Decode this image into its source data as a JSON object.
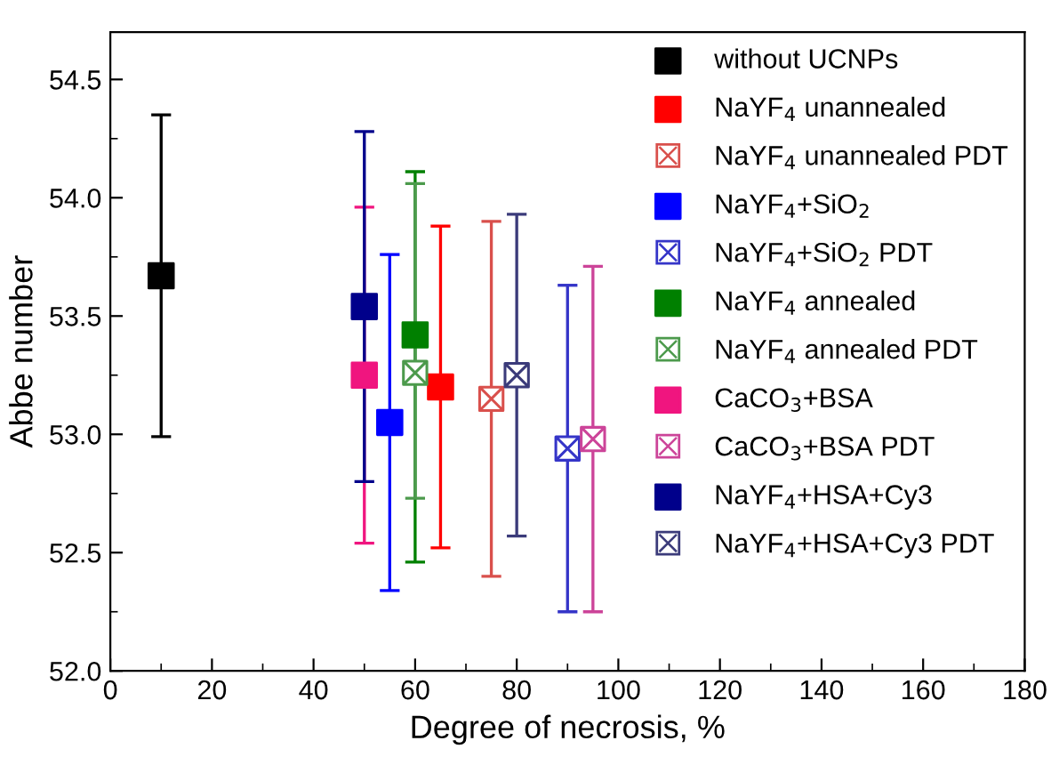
{
  "chart_data": {
    "type": "scatter",
    "xlabel": "Degree of necrosis, %",
    "ylabel": "Abbe number",
    "xlim": [
      0,
      180
    ],
    "xticks": [
      0,
      20,
      40,
      60,
      80,
      100,
      120,
      140,
      160,
      180
    ],
    "ylim": [
      52.0,
      54.7
    ],
    "yticks": [
      {
        "value": 52,
        "label": "52.0"
      },
      52.5,
      {
        "value": 53,
        "label": "53.0"
      },
      53.5,
      {
        "value": 54,
        "label": "54.0"
      },
      54.5
    ],
    "legend": "top right",
    "grid": false,
    "series": [
      {
        "name": "without UCNPs",
        "color": "#000000",
        "marker": "square",
        "x": [
          10
        ],
        "values": [
          53.67
        ],
        "errors": [
          [
            52.99,
            54.35
          ]
        ]
      },
      {
        "name": "NaYF$_{4}$ unannealed",
        "color": "#ff0000",
        "marker": "square",
        "x": [
          65
        ],
        "values": [
          53.2
        ],
        "errors": [
          [
            52.52,
            53.88
          ]
        ]
      },
      {
        "name": "NaYF$_{4}$ unannealed PDT",
        "color": "#d9504c",
        "marker": "cross",
        "x": [
          75
        ],
        "values": [
          53.15
        ],
        "errors": [
          [
            52.4,
            53.9
          ]
        ]
      },
      {
        "name": "NaYF$_{4}$+SiO$_{2}$",
        "color": "#0000ff",
        "marker": "square",
        "x": [
          55
        ],
        "values": [
          53.05
        ],
        "errors": [
          [
            52.34,
            53.76
          ]
        ]
      },
      {
        "name": "NaYF$_{4}$+SiO$_{2}$ PDT",
        "color": "#3535c8",
        "marker": "cross",
        "x": [
          90
        ],
        "values": [
          52.94
        ],
        "errors": [
          [
            52.25,
            53.63
          ]
        ]
      },
      {
        "name": "NaYF$_{4}$ annealed",
        "color": "#008000",
        "marker": "square",
        "x": [
          60
        ],
        "values": [
          53.42
        ],
        "errors": [
          [
            52.46,
            54.11
          ]
        ]
      },
      {
        "name": "NaYF$_{4}$ annealed PDT",
        "color": "#4c9a4c",
        "marker": "cross",
        "x": [
          60
        ],
        "values": [
          53.26
        ],
        "errors": [
          [
            52.73,
            54.06
          ]
        ]
      },
      {
        "name": "CaCO$_{3}$+BSA",
        "color": "#f0157f",
        "marker": "square",
        "x": [
          50
        ],
        "values": [
          53.25
        ],
        "errors": [
          [
            52.54,
            53.96
          ]
        ]
      },
      {
        "name": "CaCO$_{3}$+BSA PDT",
        "color": "#cc4499",
        "marker": "cross",
        "x": [
          95
        ],
        "values": [
          52.98
        ],
        "errors": [
          [
            52.25,
            53.71
          ]
        ]
      },
      {
        "name": "NaYF$_{4}$+HSA+Cy3",
        "color": "#00008b",
        "marker": "square",
        "x": [
          50
        ],
        "values": [
          53.54
        ],
        "errors": [
          [
            52.8,
            54.28
          ]
        ]
      },
      {
        "name": "NaYF$_{4}$+HSA+Cy3 PDT",
        "color": "#3b3b7a",
        "marker": "cross",
        "x": [
          80
        ],
        "values": [
          53.25
        ],
        "errors": [
          [
            52.57,
            53.93
          ]
        ]
      }
    ]
  }
}
